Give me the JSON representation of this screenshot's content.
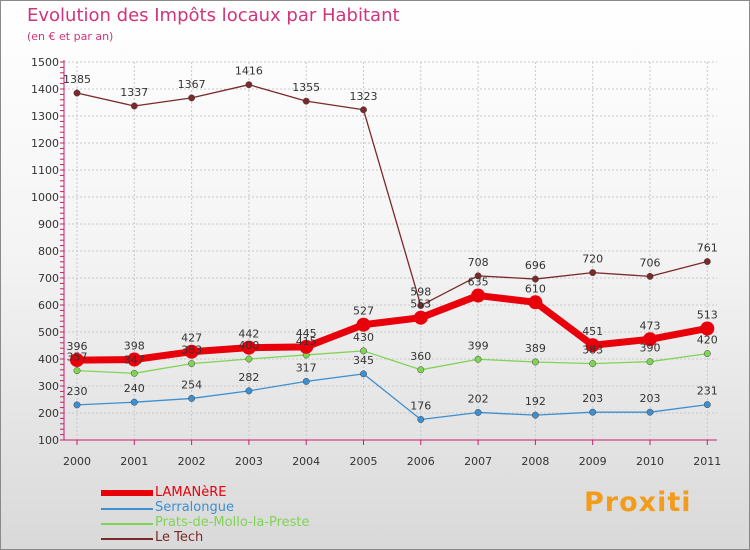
{
  "header": {
    "title": "Evolution des Impôts locaux par Habitant",
    "subtitle": "(en € et par an)"
  },
  "branding": {
    "logo_text": "Proxiti"
  },
  "chart_data": {
    "type": "line",
    "title": "Evolution des Impôts locaux par Habitant",
    "subtitle": "(en € et par an)",
    "xlabel": "",
    "ylabel": "",
    "categories": [
      "2000",
      "2001",
      "2002",
      "2003",
      "2004",
      "2005",
      "2006",
      "2007",
      "2008",
      "2009",
      "2010",
      "2011"
    ],
    "y_ticks": [
      100,
      200,
      300,
      400,
      500,
      600,
      700,
      800,
      900,
      1000,
      1100,
      1200,
      1300,
      1400,
      1500
    ],
    "ylim": [
      100,
      1500
    ],
    "grid": true,
    "legend_position": "bottom-left",
    "series": [
      {
        "name": "LAMANèRE",
        "color": "#e8000b",
        "values": [
          396,
          398,
          427,
          442,
          445,
          527,
          553,
          635,
          610,
          451,
          473,
          513
        ],
        "labels": [
          "396",
          "398",
          "427",
          "442",
          "445",
          "527",
          "553",
          "635",
          "610",
          "451",
          "473",
          "513"
        ]
      },
      {
        "name": "Serralongue",
        "color": "#3d8fd0",
        "values": [
          230,
          240,
          254,
          282,
          317,
          345,
          176,
          202,
          192,
          203,
          203,
          231
        ],
        "labels": [
          "230",
          "240",
          "254",
          "282",
          "317",
          "345",
          "176",
          "202",
          "192",
          "203",
          "203",
          "231"
        ]
      },
      {
        "name": "Prats-de-Mollo-la-Preste",
        "color": "#80d454",
        "values": [
          357,
          347,
          383,
          400,
          415,
          430,
          360,
          399,
          389,
          383,
          390,
          420
        ],
        "labels": [
          "357",
          "347",
          "383",
          "400",
          "415",
          "430",
          "360",
          "399",
          "389",
          "383",
          "390",
          "420"
        ]
      },
      {
        "name": "Le Tech",
        "color": "#7a2a2a",
        "values": [
          1385,
          1337,
          1367,
          1416,
          1355,
          1323,
          598,
          708,
          696,
          720,
          706,
          761
        ],
        "labels": [
          "1385",
          "1337",
          "1367",
          "1416",
          "1355",
          "1323",
          "598",
          "708",
          "696",
          "720",
          "706",
          "761"
        ]
      }
    ]
  }
}
